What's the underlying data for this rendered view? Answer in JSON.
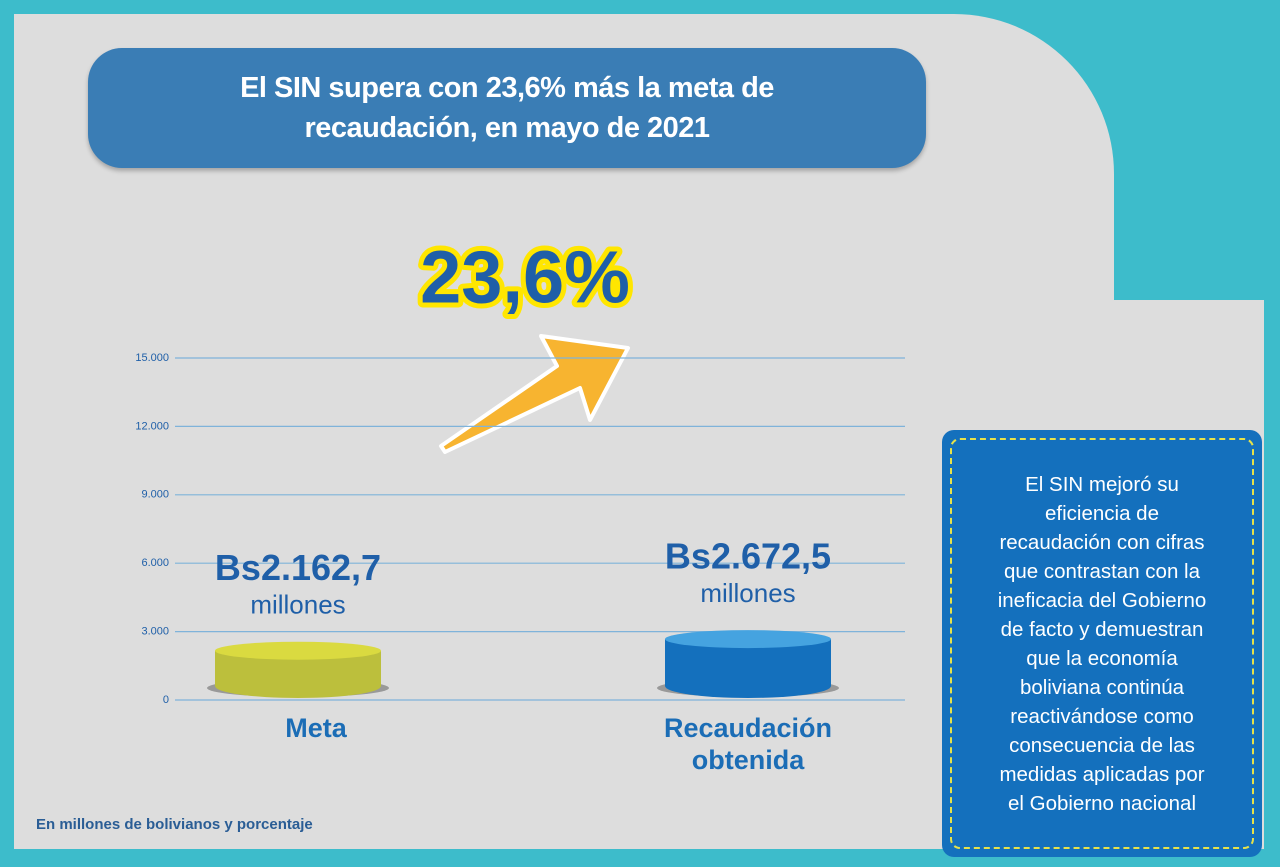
{
  "chart_data": {
    "type": "bar",
    "title": "El SIN supera con 23,6% más la meta de recaudación, en mayo de 2021",
    "categories": [
      "Meta",
      "Recaudación obtenida"
    ],
    "values": [
      2162.7,
      2672.5
    ],
    "value_labels": [
      "Bs2.162,7",
      "Bs2.672,5"
    ],
    "value_unit": "millones",
    "colors": [
      "#bcbf3c",
      "#1470bd"
    ],
    "annotation": "23,6%",
    "ylim": [
      0,
      15000
    ],
    "yticks": [
      0,
      {
        "value": 3000,
        "label": "3.000"
      },
      {
        "value": 6000,
        "label": "6.000"
      },
      {
        "value": 9000,
        "label": "9.000"
      },
      {
        "value": 12000,
        "label": "12.000"
      },
      {
        "value": 15000,
        "label": "15.000"
      }
    ],
    "grid": true,
    "footnote": "En millones de bolivianos y porcentaje",
    "note_lines": [
      "El SIN mejoró su",
      "eficiencia de",
      "recaudación con cifras",
      "que contrastan con la",
      "ineficacia del Gobierno",
      "de facto y demuestran",
      "que la economía",
      "boliviana continúa",
      "reactivándose como",
      "consecuencia de las",
      "medidas aplicadas por",
      "el Gobierno nacional"
    ]
  }
}
